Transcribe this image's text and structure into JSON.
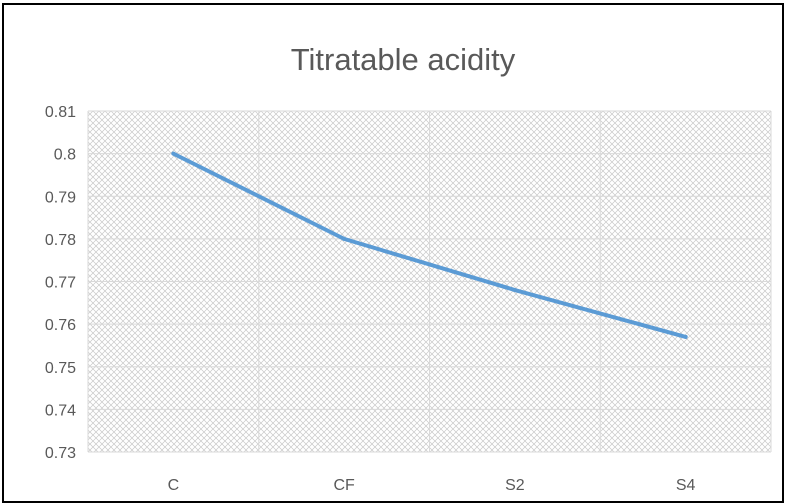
{
  "chart_data": {
    "type": "line",
    "title": "Titratable acidity",
    "xlabel": "",
    "ylabel": "",
    "categories": [
      "C",
      "CF",
      "S2",
      "S4"
    ],
    "series": [
      {
        "values": [
          0.8,
          0.78,
          0.768,
          0.757
        ],
        "color": "#5b9bd5"
      }
    ],
    "ylim": [
      0.73,
      0.81
    ],
    "yticks": [
      "0.81",
      "0.8",
      "0.79",
      "0.78",
      "0.77",
      "0.76",
      "0.75",
      "0.74",
      "0.73"
    ],
    "grid": true,
    "plot_background": "diagonal hatch",
    "legend": "none"
  }
}
